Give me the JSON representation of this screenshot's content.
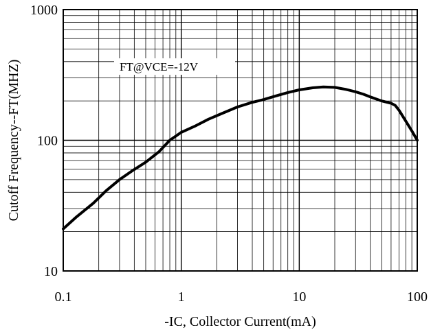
{
  "chart_data": {
    "type": "line",
    "title": "",
    "xlabel": "-IC, Collector Current(mA)",
    "ylabel": "Cutoff Frequency--FT(MHZ)",
    "xscale": "log",
    "yscale": "log",
    "xlim": [
      0.1,
      100
    ],
    "ylim": [
      10,
      1000
    ],
    "x_ticks": [
      0.1,
      1,
      10,
      100
    ],
    "x_tick_labels": [
      "0.1",
      "1",
      "10",
      "100"
    ],
    "y_ticks": [
      10,
      100,
      1000
    ],
    "y_tick_labels": [
      "10",
      "100",
      "1000"
    ],
    "grid": true,
    "annotation": "FT@VCE=-12V",
    "series": [
      {
        "x": [
          0.1,
          0.13,
          0.18,
          0.23,
          0.3,
          0.38,
          0.5,
          0.65,
          0.8,
          1.0,
          1.3,
          1.7,
          2.2,
          3.0,
          4.0,
          5.0,
          6.5,
          8.0,
          10,
          13,
          16,
          20,
          25,
          30,
          35,
          40,
          50,
          60,
          65,
          70,
          80,
          90,
          100
        ],
        "y": [
          21,
          26,
          33,
          41,
          50,
          58,
          68,
          82,
          100,
          115,
          128,
          145,
          160,
          180,
          195,
          205,
          220,
          232,
          243,
          252,
          256,
          254,
          245,
          235,
          225,
          215,
          200,
          192,
          185,
          170,
          140,
          118,
          100
        ]
      }
    ],
    "colors": {
      "line": "#000000",
      "grid": "#000000",
      "background": "#ffffff"
    }
  }
}
